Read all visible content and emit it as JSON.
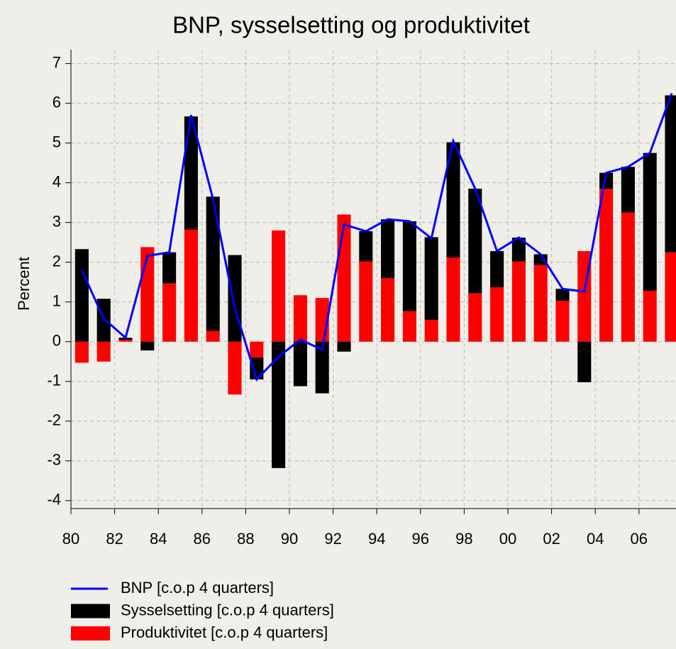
{
  "chart_data": {
    "type": "bar",
    "title": "BNP, sysselsetting og produktivitet",
    "y_label": "Percent",
    "categories": [
      "80",
      null,
      "82",
      null,
      "84",
      null,
      "86",
      null,
      "88",
      null,
      "90",
      null,
      "92",
      null,
      "94",
      null,
      "96",
      null,
      "98",
      null,
      "00",
      null,
      "02",
      null,
      "04",
      null,
      "06",
      null
    ],
    "series": [
      {
        "name": "BNP [c.o.p 4 quarters]",
        "type": "line",
        "color": "#0000ff",
        "values": [
          1.8,
          0.58,
          0.1,
          2.16,
          2.25,
          5.7,
          3.6,
          0.85,
          -0.95,
          -0.38,
          0.05,
          -0.2,
          2.95,
          2.78,
          3.08,
          3.03,
          2.6,
          5.05,
          3.85,
          2.28,
          2.62,
          2.2,
          1.33,
          1.26,
          4.25,
          4.4,
          4.75,
          6.25
        ]
      },
      {
        "name": "Sysselsetting [c.o.p 4 quarters]",
        "type": "bar",
        "color": "#000000",
        "values": [
          2.33,
          1.08,
          0.05,
          -0.22,
          0.78,
          2.85,
          3.38,
          2.18,
          -0.55,
          -3.18,
          -1.12,
          -1.3,
          -0.25,
          0.76,
          1.48,
          2.26,
          2.08,
          2.9,
          2.63,
          0.91,
          0.6,
          0.27,
          0.3,
          -1.02,
          0.4,
          1.15,
          3.47,
          3.95
        ]
      },
      {
        "name": "Produktivitet [c.o.p 4 quarters]",
        "type": "bar",
        "color": "#ff0000",
        "values": [
          -0.53,
          -0.5,
          0.05,
          2.38,
          1.47,
          2.82,
          0.27,
          -1.33,
          -0.4,
          2.8,
          1.17,
          1.1,
          3.2,
          2.02,
          1.6,
          0.77,
          0.55,
          2.12,
          1.22,
          1.37,
          2.02,
          1.93,
          1.03,
          2.28,
          3.85,
          3.25,
          1.28,
          2.25
        ]
      }
    ],
    "ylim": [
      -4.2,
      7.35
    ],
    "yticks": [
      -4,
      -3,
      -2,
      -1,
      0,
      1,
      2,
      3,
      4,
      5,
      6,
      7
    ],
    "grid": true
  }
}
